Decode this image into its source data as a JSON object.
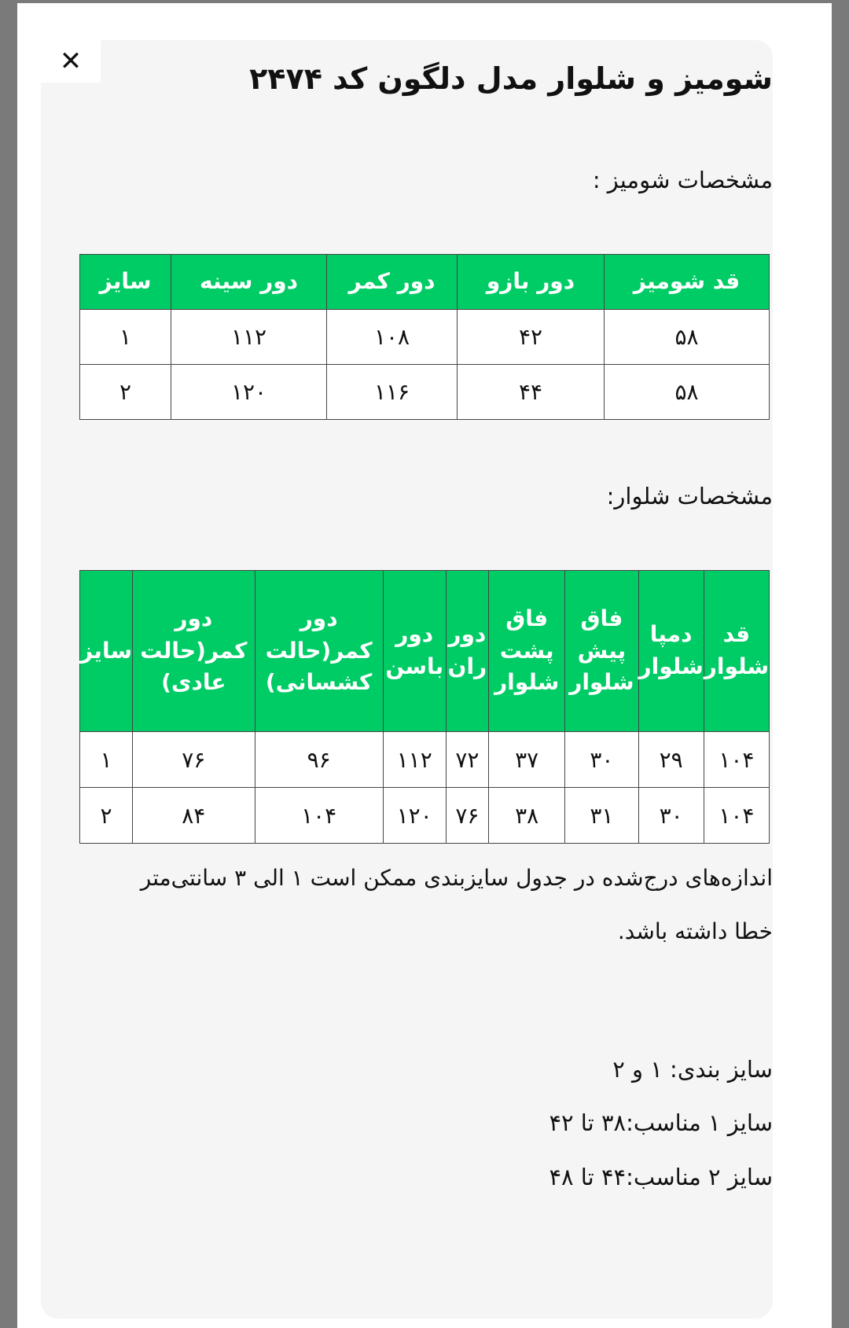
{
  "close_icon": "close-icon",
  "title": "شومیز و شلوار مدل دلگون کد ۲۴۷۴",
  "shirt_heading": "مشخصات شومیز :",
  "shirt_table": {
    "headers": [
      "قد شومیز",
      "دور بازو",
      "دور کمر",
      "دور سینه",
      "سایز"
    ],
    "rows": [
      [
        "۵۸",
        "۴۲",
        "۱۰۸",
        "۱۱۲",
        "۱"
      ],
      [
        "۵۸",
        "۴۴",
        "۱۱۶",
        "۱۲۰",
        "۲"
      ]
    ]
  },
  "pants_heading": "مشخصات شلوار:",
  "pants_table": {
    "headers": [
      "قد شلوار",
      "دمپا شلوار",
      "فاق پیش شلوار",
      "فاق پشت شلوار",
      "دور ران",
      "دور باسن",
      "دور کمر(حالت کشسانی)",
      "دور کمر(حالت عادی)",
      "سایز"
    ],
    "rows": [
      [
        "۱۰۴",
        "۲۹",
        "۳۰",
        "۳۷",
        "۷۲",
        "۱۱۲",
        "۹۶",
        "۷۶",
        "۱"
      ],
      [
        "۱۰۴",
        "۳۰",
        "۳۱",
        "۳۸",
        "۷۶",
        "۱۲۰",
        "۱۰۴",
        "۸۴",
        "۲"
      ]
    ]
  },
  "note": "اندازه‌های درج‌شده در جدول سایزبندی ممکن است ۱ الی ۳ سانتی‌متر خطا داشته باشد.",
  "sizes": [
    "سایز بندی: ۱ و ۲",
    "سایز ۱ مناسب:۳۸ تا ۴۲",
    "سایز ۲ مناسب:۴۴ تا ۴۸"
  ],
  "colors": {
    "header_green": "#00cc66"
  }
}
